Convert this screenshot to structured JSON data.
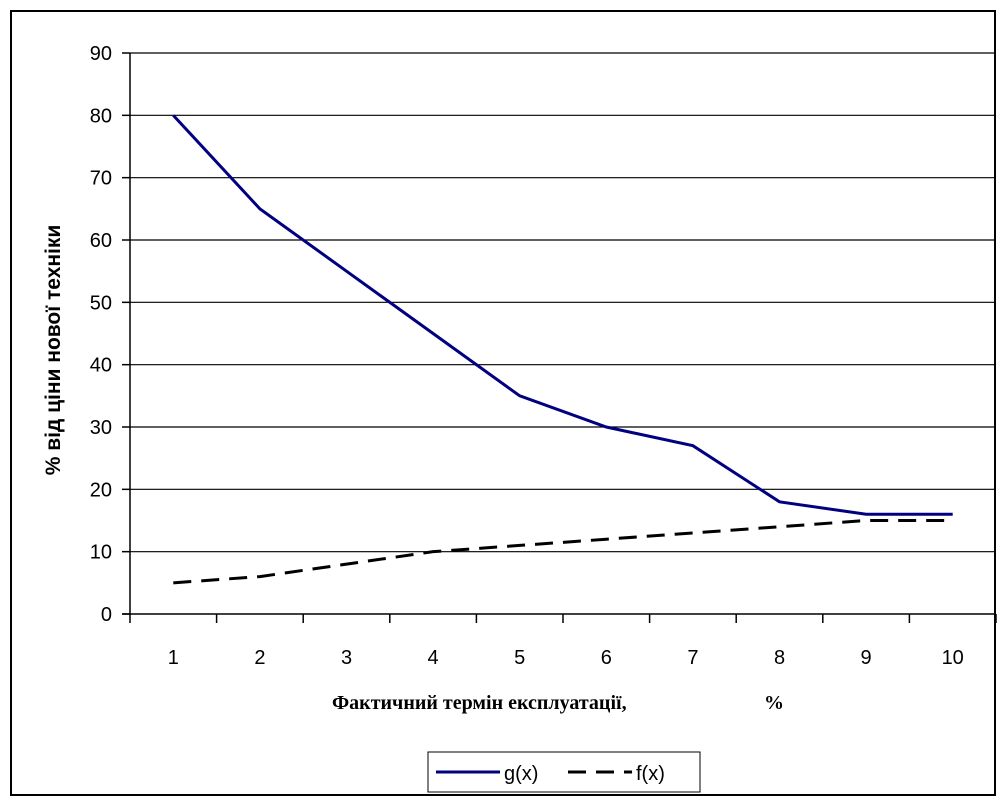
{
  "chart_data": {
    "type": "line",
    "x": [
      1,
      2,
      3,
      4,
      5,
      6,
      7,
      8,
      9,
      10
    ],
    "categories": [
      "1",
      "2",
      "3",
      "4",
      "5",
      "6",
      "7",
      "8",
      "9",
      "10"
    ],
    "series": [
      {
        "name": "g(x)",
        "values": [
          80,
          65,
          55,
          45,
          35,
          30,
          27,
          18,
          16,
          16
        ],
        "color": "#000080",
        "style": "solid"
      },
      {
        "name": "f(x)",
        "values": [
          5,
          6,
          8,
          10,
          11,
          12,
          13,
          14,
          15,
          15
        ],
        "color": "#000000",
        "style": "dashed"
      }
    ],
    "xlabel_main": "Фактичний термін експлуатації,",
    "xlabel_unit": "%",
    "ylabel": "% від ціни нової техніки",
    "ylim": [
      0,
      90
    ],
    "yticks": [
      0,
      10,
      20,
      30,
      40,
      50,
      60,
      70,
      80,
      90
    ],
    "grid": "horizontal",
    "legend_position": "bottom"
  }
}
